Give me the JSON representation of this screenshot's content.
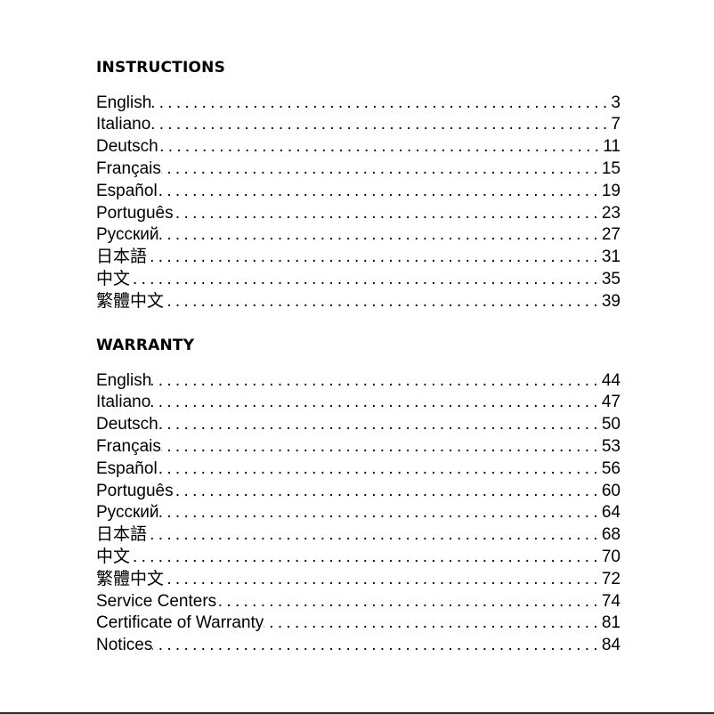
{
  "instructions": {
    "heading": "INSTRUCTIONS",
    "items": [
      {
        "label": "English",
        "page": "3"
      },
      {
        "label": "Italiano",
        "page": "7"
      },
      {
        "label": "Deutsch",
        "page": "11"
      },
      {
        "label": "Français",
        "page": "15"
      },
      {
        "label": "Español",
        "page": "19"
      },
      {
        "label": "Português",
        "page": "23"
      },
      {
        "label": "Русский",
        "page": "27"
      },
      {
        "label": "日本語",
        "page": "31"
      },
      {
        "label": "中文",
        "page": "35"
      },
      {
        "label": "繁體中文",
        "page": "39"
      }
    ]
  },
  "warranty": {
    "heading": "WARRANTY",
    "items": [
      {
        "label": "English",
        "page": "44"
      },
      {
        "label": "Italiano",
        "page": "47"
      },
      {
        "label": "Deutsch",
        "page": "50"
      },
      {
        "label": "Français",
        "page": "53"
      },
      {
        "label": "Español",
        "page": "56"
      },
      {
        "label": "Português",
        "page": "60"
      },
      {
        "label": "Русский",
        "page": "64"
      },
      {
        "label": "日本語",
        "page": "68"
      },
      {
        "label": "中文",
        "page": "70"
      },
      {
        "label": "繁體中文",
        "page": "72"
      },
      {
        "label": "Service Centers",
        "page": "74"
      },
      {
        "label": "Certificate of Warranty",
        "page": "81"
      },
      {
        "label": "Notices",
        "page": "84"
      }
    ]
  }
}
